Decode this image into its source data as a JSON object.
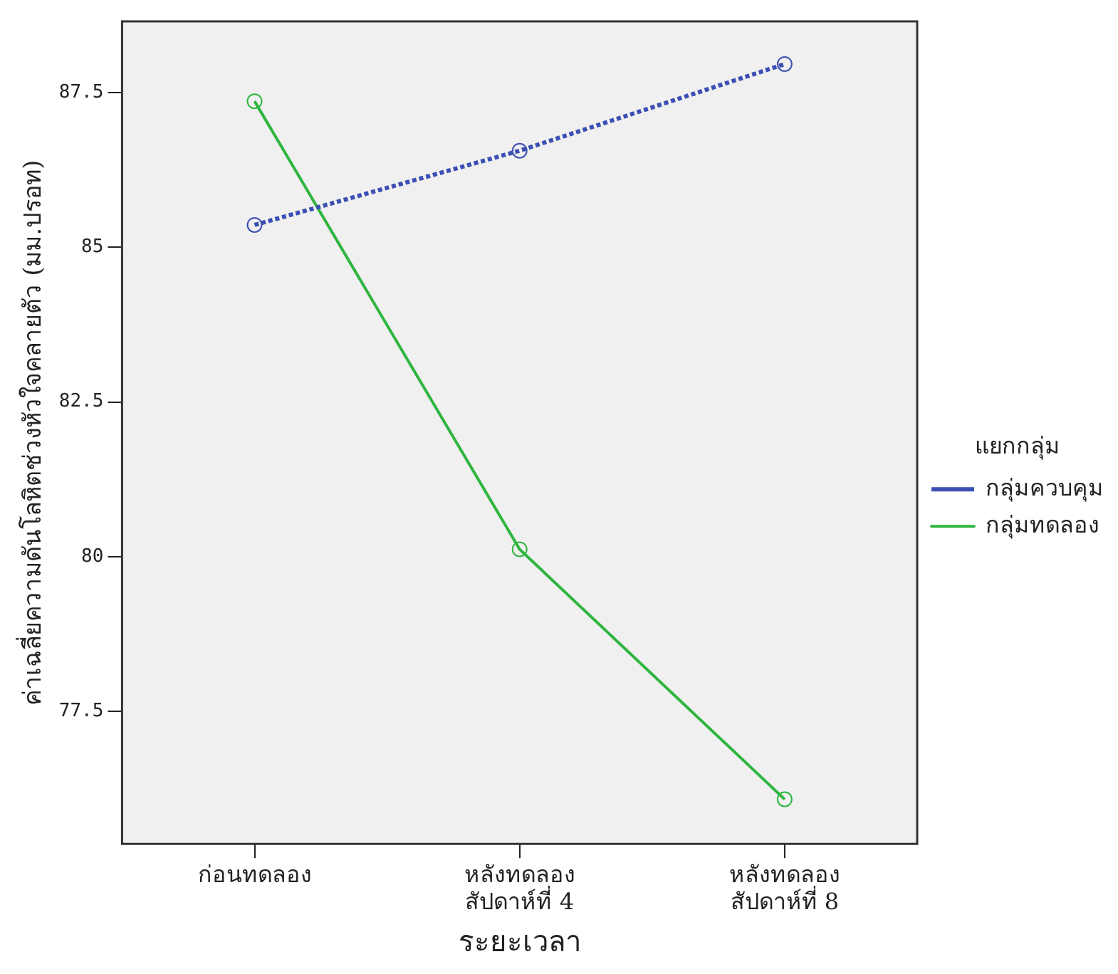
{
  "chart_data": {
    "type": "line",
    "xlabel": "ระยะเวลา",
    "ylabel": "ค่าเฉลี่ยความดันโลหิตช่วงหัวใจคลายตัว (มม.ปรอท)",
    "legend_title": "แยกกลุ่ม",
    "categories": [
      "ก่อนทดลอง",
      "หลังทดลอง\nสัปดาห์ที่ 4",
      "หลังทดลอง\nสัปดาห์ที่ 8"
    ],
    "series": [
      {
        "name": "กลุ่มควบคุม",
        "color": "#3b4fb3",
        "values": [
          85.36,
          86.56,
          87.96
        ],
        "line_style": "dotted"
      },
      {
        "name": "กลุ่มทดลอง",
        "color": "#2fb53f",
        "values": [
          87.36,
          80.12,
          76.08
        ],
        "line_style": "solid"
      }
    ],
    "ylim": [
      75.36,
      88.65
    ],
    "yticks": [
      77.5,
      80,
      82.5,
      85,
      87.5
    ],
    "grid": false,
    "legend": "right",
    "marker": "circle"
  }
}
